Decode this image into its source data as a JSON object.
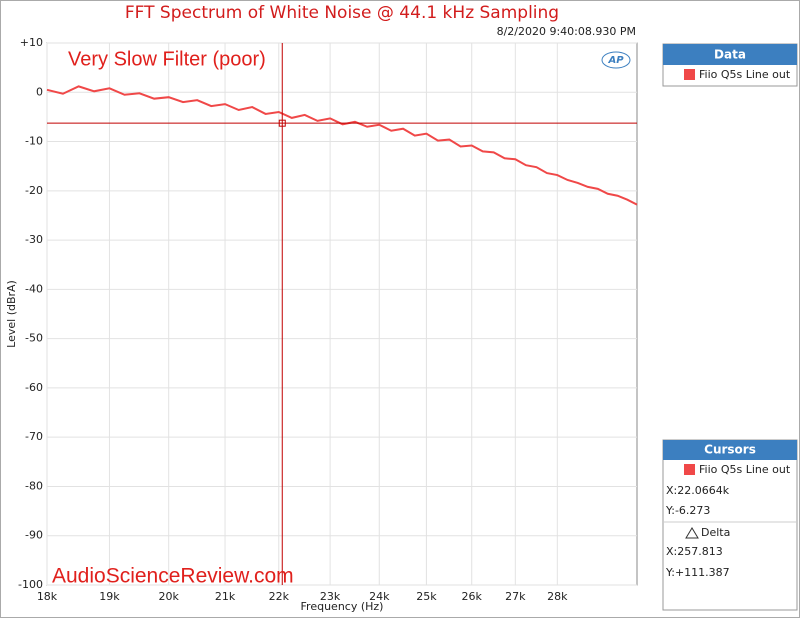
{
  "chart_data": {
    "type": "line",
    "title": "FFT Spectrum of White Noise @ 44.1 kHz Sampling",
    "timestamp": "8/2/2020 9:40:08.930 PM",
    "annotation": "Very Slow Filter (poor)",
    "watermark": "AudioScienceReview.com",
    "x_label": "Frequency (Hz)",
    "y_label": "Level (dBrA)",
    "xscale": "log",
    "grid": true,
    "xlim": [
      18000,
      30000
    ],
    "xticks": [
      {
        "value": 18000,
        "label": "18k"
      },
      {
        "value": 19000,
        "label": "19k"
      },
      {
        "value": 20000,
        "label": "20k"
      },
      {
        "value": 21000,
        "label": "21k"
      },
      {
        "value": 22000,
        "label": "22k"
      },
      {
        "value": 23000,
        "label": "23k"
      },
      {
        "value": 24000,
        "label": "24k"
      },
      {
        "value": 25000,
        "label": "25k"
      },
      {
        "value": 26000,
        "label": "26k"
      },
      {
        "value": 27000,
        "label": "27k"
      },
      {
        "value": 28000,
        "label": "28k"
      }
    ],
    "ylim": [
      -100,
      10
    ],
    "yticks": [
      {
        "value": 10,
        "label": "+10"
      },
      0,
      -10,
      -20,
      -30,
      -40,
      -50,
      -60,
      -70,
      -80,
      -90,
      -100
    ],
    "x": [
      18000,
      18250,
      18500,
      18750,
      19000,
      19250,
      19500,
      19750,
      20000,
      20250,
      20500,
      20750,
      21000,
      21250,
      21500,
      21750,
      22000,
      22250,
      22500,
      22750,
      23000,
      23250,
      23500,
      23750,
      24000,
      24250,
      24500,
      24750,
      25000,
      25250,
      25500,
      25750,
      26000,
      26250,
      26500,
      26750,
      27000,
      27250,
      27500,
      27750,
      28000,
      28250,
      28500,
      28750,
      29000,
      29250,
      29500,
      29750,
      30000
    ],
    "series": [
      {
        "name": "Fiio Q5s Line out",
        "color": "#f04848",
        "values": [
          0.5,
          -0.3,
          1.2,
          0.2,
          0.8,
          -0.5,
          -0.2,
          -1.3,
          -1.0,
          -2.0,
          -1.6,
          -2.8,
          -2.4,
          -3.6,
          -3.0,
          -4.4,
          -4.0,
          -5.2,
          -4.6,
          -5.8,
          -5.3,
          -6.5,
          -6.0,
          -7.0,
          -6.6,
          -7.8,
          -7.4,
          -8.8,
          -8.4,
          -9.8,
          -9.6,
          -11.0,
          -10.8,
          -12.0,
          -12.2,
          -13.4,
          -13.6,
          -14.8,
          -15.2,
          -16.4,
          -16.8,
          -17.8,
          -18.4,
          -19.2,
          -19.6,
          -20.6,
          -21.0,
          -21.8,
          -22.8
        ]
      }
    ],
    "legend_title": "Data",
    "cursor": {
      "title": "Cursors",
      "x": 22066.4,
      "y": -6.273,
      "x_label": "X:22.0664k",
      "y_label": "Y:-6.273",
      "delta_label": "Delta",
      "delta_x": "X:257.813",
      "delta_y": "Y:+111.387"
    },
    "logo": "AP"
  }
}
